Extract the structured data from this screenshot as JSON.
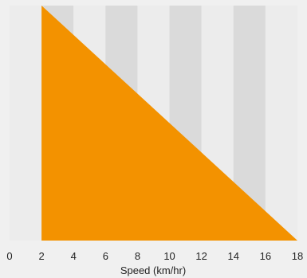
{
  "chart_data": {
    "type": "area",
    "title": "",
    "xlabel": "Speed (km/hr)",
    "ylabel": "",
    "xlim": [
      0,
      18
    ],
    "ylim": [
      0,
      1
    ],
    "x_ticks": [
      0,
      2,
      4,
      6,
      8,
      10,
      12,
      14,
      16,
      18
    ],
    "grid": "alternating vertical bands every 2 km/hr",
    "series": [
      {
        "x": [
          2,
          18
        ],
        "y": [
          1,
          0
        ],
        "color": "#f39200"
      }
    ]
  },
  "colors": {
    "background": "#f0f0f0",
    "band_light": "#ececec",
    "band_dark": "#dadada",
    "fill": "#f39200",
    "text": "#222222"
  }
}
